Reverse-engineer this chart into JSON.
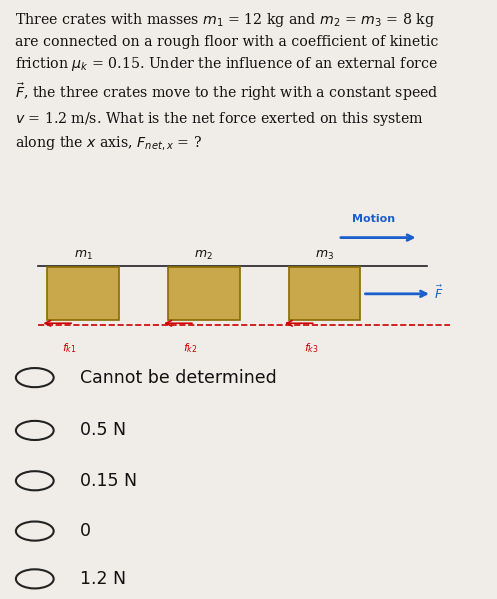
{
  "bg_color": "#f0ede8",
  "title_text": "Three crates with masses $m_1$ = 12 kg and $m_2$ = $m_3$ = 8 kg\nare connected on a rough floor with a coefficient of kinetic\nfriction $\\mu_k$ = 0.15. Under the influence of an external force\n$\\vec{F}$, the three crates move to the right with a constant speed\n$v$ = 1.2 m/s. What is the net force exerted on this system\nalong the $x$ axis, $F_{net,x}$ = ?",
  "motion_label": "Motion",
  "crate_color": "#c8a84b",
  "crate_edge_color": "#8a6a00",
  "crate_labels": [
    "$m_1$",
    "$m_2$",
    "$m_3$"
  ],
  "friction_labels": [
    "$f_{k1}$",
    "$f_{k2}$",
    "$f_{k3}$"
  ],
  "force_label": "$\\vec{F}$",
  "rope_color": "#222222",
  "friction_arrow_color": "#cc0000",
  "force_arrow_color": "#1a5fcc",
  "motion_arrow_color": "#1a5fcc",
  "choices": [
    "Cannot be determined",
    "0.5 N",
    "0.15 N",
    "0",
    "1.2 N"
  ],
  "floor_color": "#cc0000"
}
